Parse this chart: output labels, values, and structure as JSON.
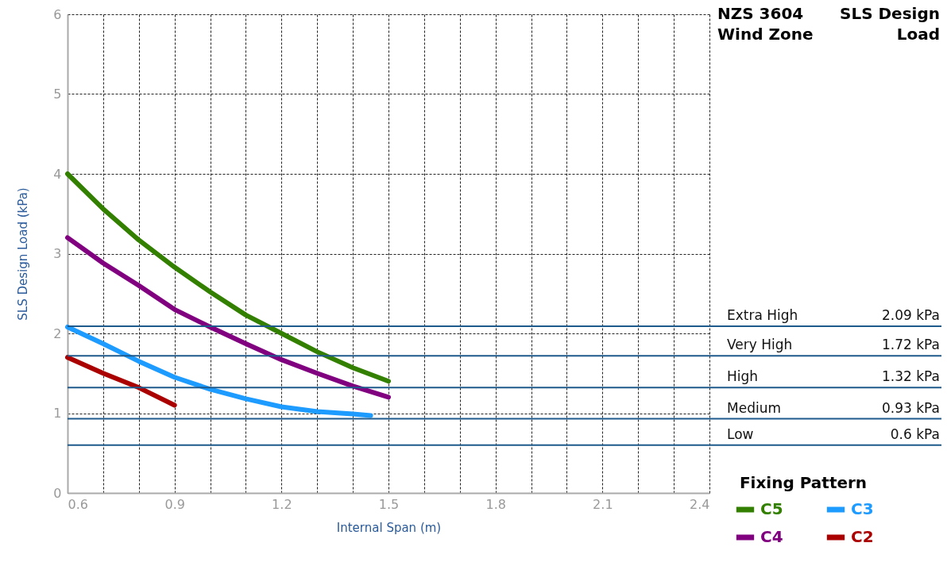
{
  "chart_data": {
    "type": "line",
    "title": "NZS 3604\nWind Zone",
    "subtitle": "SLS Design\nLoad",
    "xlabel": "Internal Span (m)",
    "ylabel": "SLS Design Load (kPa)",
    "legend_title": "Fixing Pattern",
    "x": [
      0.6,
      0.7,
      0.8,
      0.9,
      1.0,
      1.1,
      1.2,
      1.3,
      1.4,
      1.5
    ],
    "series": [
      {
        "name": "C5",
        "color": "#338000",
        "values": [
          4.0,
          3.56,
          3.17,
          2.83,
          2.52,
          2.23,
          2.0,
          1.77,
          1.57,
          1.4
        ]
      },
      {
        "name": "C4",
        "color": "#800080",
        "values": [
          3.2,
          2.88,
          2.6,
          2.3,
          2.08,
          1.87,
          1.67,
          1.5,
          1.34,
          1.2
        ]
      },
      {
        "name": "C3",
        "color": "#1e9bff",
        "x": [
          0.6,
          0.7,
          0.8,
          0.9,
          1.0,
          1.1,
          1.2,
          1.3,
          1.4,
          1.45
        ],
        "values": [
          2.08,
          1.87,
          1.65,
          1.45,
          1.3,
          1.18,
          1.08,
          1.02,
          0.99,
          0.97
        ]
      },
      {
        "name": "C2",
        "color": "#aa0000",
        "x": [
          0.6,
          0.7,
          0.8,
          0.9
        ],
        "values": [
          1.7,
          1.5,
          1.32,
          1.1
        ]
      }
    ],
    "xlim": [
      0.6,
      2.4
    ],
    "xticks": [
      0.6,
      {
        "value": 0.7,
        "label": null
      },
      {
        "value": 0.8,
        "label": null
      },
      0.9,
      {
        "value": 1.0,
        "label": null
      },
      {
        "value": 1.1,
        "label": null
      },
      1.2,
      {
        "value": 1.3,
        "label": null
      },
      {
        "value": 1.4,
        "label": null
      },
      1.5,
      {
        "value": 1.6,
        "label": null
      },
      {
        "value": 1.7,
        "label": null
      },
      1.8,
      {
        "value": 1.9,
        "label": null
      },
      {
        "value": 2.0,
        "label": null
      },
      2.1,
      {
        "value": 2.2,
        "label": null
      },
      {
        "value": 2.3,
        "label": null
      },
      2.4
    ],
    "ylim": [
      0,
      6
    ],
    "yticks": [
      0,
      1,
      2,
      3,
      4,
      5,
      6
    ],
    "ref_lines": [
      {
        "axis": "y",
        "value": 2.09,
        "label": "Extra High\t2.09 kPa",
        "color": "#1f5a8c"
      },
      {
        "axis": "y",
        "value": 1.72,
        "label": "Very High\t1.72 kPa",
        "color": "#1f5a8c"
      },
      {
        "axis": "y",
        "value": 1.32,
        "label": "High\t1.32 kPa",
        "color": "#1f5a8c"
      },
      {
        "axis": "y",
        "value": 0.93,
        "label": "Medium\t0.93 kPa",
        "color": "#1f5a8c"
      },
      {
        "axis": "y",
        "value": 0.6,
        "label": "Low\t0.6 kPa",
        "color": "#1f5a8c"
      }
    ],
    "grid": true,
    "legend": "bottom right",
    "marker": "none",
    "line_style": "solid"
  }
}
